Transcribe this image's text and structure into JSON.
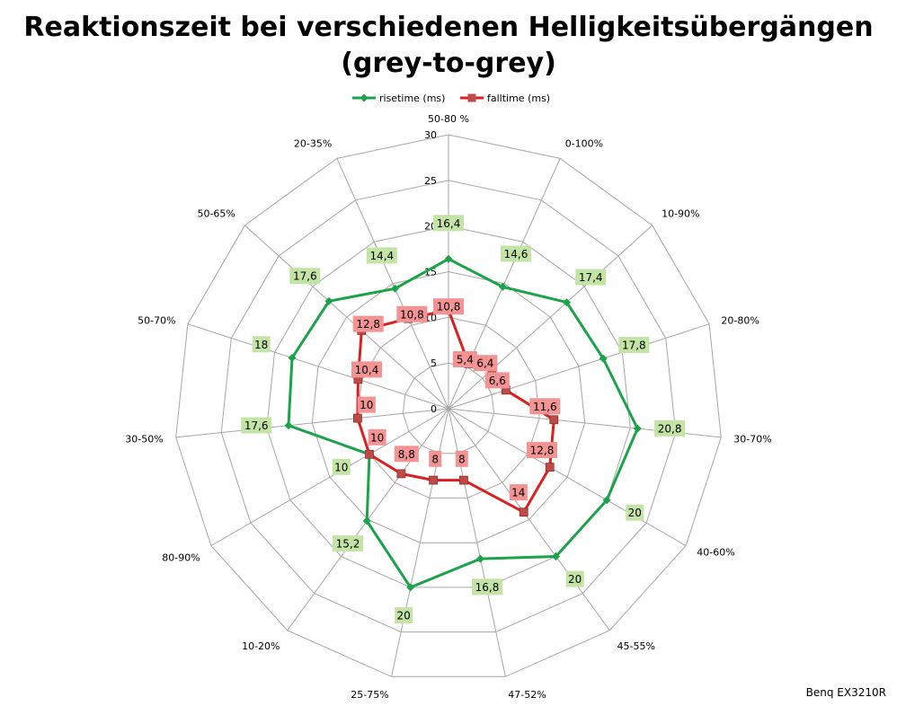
{
  "chart_data": {
    "type": "radar",
    "title_line1": "Reaktionszeit bei verschiedenen Helligkeitsübergängen",
    "title_line2": "(grey-to-grey)",
    "categories": [
      "50-80 %",
      "0-100%",
      "10-90%",
      "20-80%",
      "30-70%",
      "40-60%",
      "45-55%",
      "47-52%",
      "25-75%",
      "10-20%",
      "80-90%",
      "30-50%",
      "50-70%",
      "50-65%",
      "20-35%"
    ],
    "rlim": [
      0,
      30
    ],
    "ticks": [
      "0",
      "5",
      "10",
      "15",
      "20",
      "25",
      "30"
    ],
    "tick_values": [
      0,
      5,
      10,
      15,
      20,
      25,
      30
    ],
    "grid": true,
    "legend_position": "top",
    "series": [
      {
        "name": "risetime (ms)",
        "color": "#1ba34a",
        "marker": "diamond",
        "label_bg": "#c4e4a6",
        "values": [
          16.4,
          14.6,
          17.4,
          17.8,
          20.8,
          20,
          20,
          16.8,
          20,
          15.2,
          10,
          17.6,
          18,
          17.6,
          14.4
        ],
        "labels": [
          "16,4",
          "14,6",
          "17,4",
          "17,8",
          "20,8",
          "20",
          "20",
          "16,8",
          "20",
          "15,2",
          "10",
          "17,6",
          "18",
          "17,6",
          "14,4"
        ]
      },
      {
        "name": "falltime (ms)",
        "color": "#dd1f1f",
        "marker": "square",
        "label_bg": "#f39393",
        "values": [
          10.8,
          5.4,
          6.4,
          6.6,
          11.6,
          12.8,
          14,
          8,
          8,
          8.8,
          10,
          10,
          10.4,
          12.8,
          10.8
        ],
        "labels": [
          "10,8",
          "5,4",
          "6,4",
          "6,6",
          "11,6",
          "12,8",
          "14",
          "8",
          "8",
          "8,8",
          "10",
          "10",
          "10,4",
          "12,8",
          "10,8"
        ]
      }
    ]
  },
  "watermark": "Benq EX3210R"
}
